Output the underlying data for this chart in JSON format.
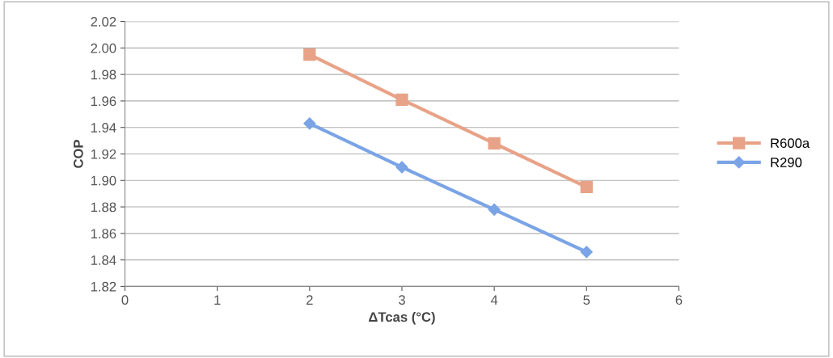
{
  "chart_data": {
    "type": "line",
    "xlabel": "ΔTcas (°C)",
    "ylabel": "COP",
    "x": [
      2,
      3,
      4,
      5
    ],
    "series": [
      {
        "name": "R600a",
        "color": "#e8a287",
        "marker": "square",
        "values": [
          1.995,
          1.961,
          1.928,
          1.895
        ]
      },
      {
        "name": "R290",
        "color": "#7ba4e6",
        "marker": "diamond",
        "values": [
          1.943,
          1.91,
          1.878,
          1.846
        ]
      }
    ],
    "xlim": [
      0,
      6
    ],
    "xticks": [
      0,
      1,
      2,
      3,
      4,
      5,
      6
    ],
    "ylim": [
      1.82,
      2.02
    ],
    "yticks": [
      {
        "value": 1.82,
        "label": "1.82"
      },
      {
        "value": 1.84,
        "label": "1.84"
      },
      {
        "value": 1.86,
        "label": "1.86"
      },
      {
        "value": 1.88,
        "label": "1.88"
      },
      {
        "value": 1.9,
        "label": "1.90"
      },
      {
        "value": 1.92,
        "label": "1.92"
      },
      {
        "value": 1.94,
        "label": "1.94"
      },
      {
        "value": 1.96,
        "label": "1.96"
      },
      {
        "value": 1.98,
        "label": "1.98"
      },
      {
        "value": 2.0,
        "label": "2.00"
      },
      {
        "value": 2.02,
        "label": "2.02"
      }
    ],
    "grid": "y",
    "legend": "right",
    "line_style": "solid"
  }
}
